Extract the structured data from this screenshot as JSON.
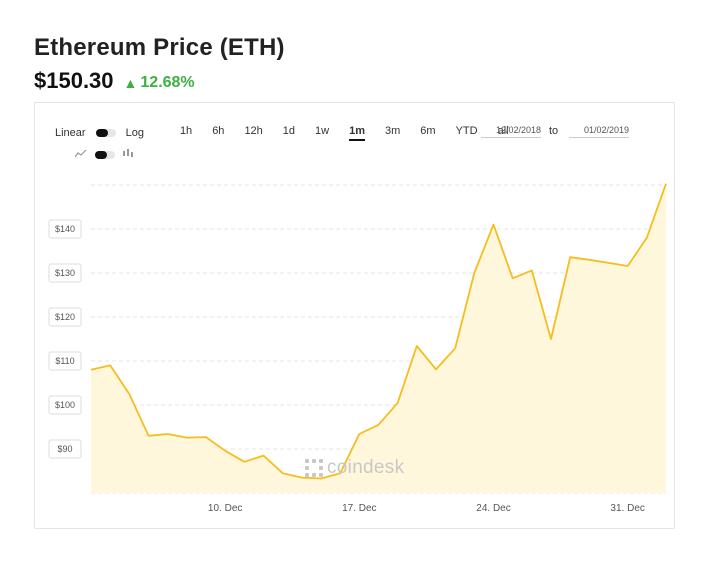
{
  "header": {
    "title": "Ethereum Price (ETH)",
    "price": "$150.30",
    "change": "12.68%",
    "change_color": "#3cb043"
  },
  "toolbar": {
    "linear_label": "Linear",
    "log_label": "Log",
    "ranges": [
      "1h",
      "6h",
      "12h",
      "1d",
      "1w",
      "1m",
      "3m",
      "6m",
      "YTD",
      "all"
    ],
    "active_range": "1m",
    "from_date": "12/02/2018",
    "to_label": "to",
    "to_date": "01/02/2019",
    "line_icon": "line-chart-icon",
    "candle_icon": "candlestick-icon"
  },
  "watermark": {
    "text": "coindesk",
    "icon": "coindesk-logo-icon"
  },
  "chart_data": {
    "type": "area",
    "title": "",
    "xlabel": "",
    "ylabel": "",
    "line_color": "#f5bd1f",
    "fill_color": "#fff7dc",
    "x": [
      "2018-12-03",
      "2018-12-04",
      "2018-12-05",
      "2018-12-06",
      "2018-12-07",
      "2018-12-08",
      "2018-12-09",
      "2018-12-10",
      "2018-12-11",
      "2018-12-12",
      "2018-12-13",
      "2018-12-14",
      "2018-12-15",
      "2018-12-16",
      "2018-12-17",
      "2018-12-18",
      "2018-12-19",
      "2018-12-20",
      "2018-12-21",
      "2018-12-22",
      "2018-12-23",
      "2018-12-24",
      "2018-12-25",
      "2018-12-26",
      "2018-12-27",
      "2018-12-28",
      "2018-12-29",
      "2018-12-30",
      "2018-12-31",
      "2019-01-01",
      "2019-01-02"
    ],
    "values": [
      108.0,
      109.0,
      102.5,
      93.0,
      93.4,
      92.6,
      92.7,
      89.6,
      87.1,
      88.5,
      84.5,
      83.5,
      83.3,
      84.5,
      93.4,
      95.5,
      100.5,
      113.4,
      108.1,
      112.9,
      130.0,
      141.0,
      128.8,
      130.6,
      115.0,
      133.6,
      133.0,
      132.3,
      131.6,
      138.0,
      150.3
    ],
    "x_ticks": [
      {
        "date": "2018-12-10",
        "label": "10. Dec"
      },
      {
        "date": "2018-12-17",
        "label": "17. Dec"
      },
      {
        "date": "2018-12-24",
        "label": "24. Dec"
      },
      {
        "date": "2018-12-31",
        "label": "31. Dec"
      }
    ],
    "y_ticks": [
      90,
      100,
      110,
      120,
      130,
      140
    ],
    "y_tick_labels": [
      "$90",
      "$100",
      "$110",
      "$120",
      "$130",
      "$140"
    ],
    "ylim": [
      80,
      150
    ],
    "grid": true
  }
}
